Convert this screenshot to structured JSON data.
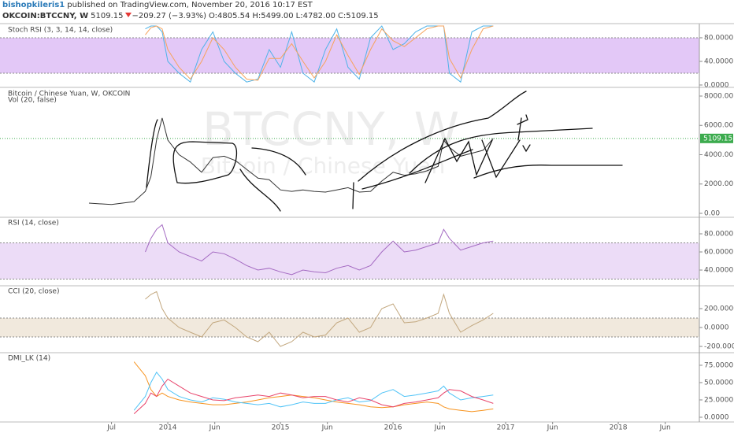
{
  "header": {
    "user": "bishopkileris1",
    "published": "published on TradingView.com, November 20, 2016 10:17 EST",
    "symbol": "OKCOIN:BTCCNY, W",
    "price": "5109.15",
    "change": "−209.27 (−3.93%)",
    "open": "O:4805.54",
    "high": "H:5499.00",
    "low": "L:4782.00",
    "close": "C:5109.15"
  },
  "chart_data": [
    {
      "type": "line",
      "title": "Stoch RSI (3, 3, 14, 14, close)",
      "x": [
        2013.3,
        2013.5,
        2013.7,
        2013.8,
        2013.85,
        2013.9,
        2013.95,
        2014.0,
        2014.1,
        2014.2,
        2014.3,
        2014.4,
        2014.5,
        2014.6,
        2014.7,
        2014.8,
        2014.9,
        2015.0,
        2015.1,
        2015.2,
        2015.3,
        2015.4,
        2015.5,
        2015.6,
        2015.7,
        2015.8,
        2015.9,
        2016.0,
        2016.1,
        2016.2,
        2016.3,
        2016.4,
        2016.45,
        2016.5,
        2016.6,
        2016.7,
        2016.8,
        2016.89
      ],
      "series": [
        {
          "color": "#4fb3e8",
          "values": [
            null,
            null,
            null,
            95,
            100,
            100,
            90,
            40,
            20,
            5,
            60,
            90,
            40,
            20,
            5,
            10,
            60,
            30,
            90,
            20,
            5,
            60,
            95,
            30,
            10,
            80,
            100,
            60,
            70,
            90,
            100,
            100,
            100,
            20,
            5,
            90,
            100,
            100
          ]
        },
        {
          "color": "#f7a35c",
          "values": [
            null,
            null,
            null,
            85,
            97,
            100,
            95,
            60,
            30,
            10,
            40,
            80,
            60,
            30,
            10,
            8,
            45,
            45,
            70,
            40,
            12,
            40,
            85,
            50,
            18,
            60,
            95,
            75,
            65,
            80,
            95,
            100,
            100,
            45,
            12,
            60,
            95,
            100
          ]
        }
      ],
      "band": [
        20,
        80
      ],
      "band_color": "#e3c8f7",
      "xlim": [
        2012.51,
        2018.72
      ],
      "ylim": [
        -2.7,
        101.3
      ],
      "yticks": [
        {
          "value": 0,
          "label": "0.0000"
        },
        {
          "value": 40,
          "label": "40.0000"
        },
        {
          "value": 80,
          "label": "80.0000"
        }
      ]
    },
    {
      "type": "price",
      "title": "Bitcoin / Chinese Yuan, W, OKCOIN",
      "volume_label": "Vol (20, false)",
      "watermark": "BTCCNY, W",
      "watermark_sub": "Bitcoin / Chinese Yuan",
      "x": [
        2013.3,
        2013.5,
        2013.7,
        2013.8,
        2013.85,
        2013.9,
        2013.95,
        2014.0,
        2014.1,
        2014.2,
        2014.3,
        2014.4,
        2014.5,
        2014.6,
        2014.7,
        2014.8,
        2014.9,
        2015.0,
        2015.1,
        2015.2,
        2015.3,
        2015.4,
        2015.5,
        2015.6,
        2015.7,
        2015.8,
        2015.9,
        2016.0,
        2016.1,
        2016.2,
        2016.3,
        2016.4,
        2016.45,
        2016.5,
        2016.6,
        2016.7,
        2016.8,
        2016.89
      ],
      "series": [
        {
          "color": "#333333",
          "values": [
            700,
            600,
            800,
            1500,
            2500,
            5000,
            6500,
            5000,
            4000,
            3500,
            2800,
            3800,
            3900,
            3600,
            3000,
            2400,
            2300,
            1600,
            1500,
            1600,
            1500,
            1450,
            1600,
            1750,
            1450,
            1500,
            2200,
            2800,
            2600,
            2700,
            2900,
            3200,
            5000,
            4500,
            3900,
            4100,
            4300,
            5109.15
          ]
        }
      ],
      "last_price": 5109.15,
      "last_price_color": "#3cab4e",
      "xlim": [
        2012.51,
        2018.72
      ],
      "ylim": [
        -215,
        8483
      ],
      "yticks": [
        {
          "value": 0,
          "label": "0.00"
        },
        {
          "value": 2000,
          "label": "2000.00"
        },
        {
          "value": 4000,
          "label": "4000.00"
        },
        {
          "value": 6000,
          "label": "6000.00"
        },
        {
          "value": 8000,
          "label": "8000.00"
        }
      ]
    },
    {
      "type": "line",
      "title": "RSI (14, close)",
      "x": [
        2013.3,
        2013.5,
        2013.7,
        2013.8,
        2013.85,
        2013.9,
        2013.95,
        2014.0,
        2014.1,
        2014.2,
        2014.3,
        2014.4,
        2014.5,
        2014.6,
        2014.7,
        2014.8,
        2014.9,
        2015.0,
        2015.1,
        2015.2,
        2015.3,
        2015.4,
        2015.5,
        2015.6,
        2015.7,
        2015.8,
        2015.9,
        2016.0,
        2016.1,
        2016.2,
        2016.3,
        2016.4,
        2016.45,
        2016.5,
        2016.6,
        2016.7,
        2016.8,
        2016.89
      ],
      "series": [
        {
          "color": "#a46ac2",
          "values": [
            null,
            null,
            null,
            60,
            75,
            85,
            90,
            70,
            60,
            55,
            50,
            60,
            58,
            52,
            45,
            40,
            42,
            38,
            35,
            40,
            38,
            37,
            42,
            45,
            40,
            45,
            60,
            72,
            60,
            62,
            66,
            70,
            85,
            75,
            62,
            66,
            70,
            72
          ]
        }
      ],
      "band": [
        30,
        70
      ],
      "band_color": "#ecdcf7",
      "xlim": [
        2012.51,
        2018.72
      ],
      "ylim": [
        23.5,
        97.4
      ],
      "yticks": [
        {
          "value": 40,
          "label": "40.0000"
        },
        {
          "value": 60,
          "label": "60.0000"
        },
        {
          "value": 80,
          "label": "80.0000"
        }
      ]
    },
    {
      "type": "line",
      "title": "CCI (20, close)",
      "x": [
        2013.3,
        2013.5,
        2013.7,
        2013.8,
        2013.85,
        2013.9,
        2013.95,
        2014.0,
        2014.1,
        2014.2,
        2014.3,
        2014.4,
        2014.5,
        2014.6,
        2014.7,
        2014.8,
        2014.9,
        2015.0,
        2015.1,
        2015.2,
        2015.3,
        2015.4,
        2015.5,
        2015.6,
        2015.7,
        2015.8,
        2015.9,
        2016.0,
        2016.1,
        2016.2,
        2016.3,
        2016.4,
        2016.45,
        2016.5,
        2016.6,
        2016.7,
        2016.8,
        2016.89
      ],
      "series": [
        {
          "color": "#c2a77e",
          "values": [
            null,
            null,
            null,
            300,
            350,
            380,
            200,
            100,
            0,
            -50,
            -100,
            50,
            80,
            0,
            -100,
            -150,
            -50,
            -200,
            -150,
            -50,
            -100,
            -80,
            50,
            100,
            -50,
            0,
            200,
            250,
            50,
            60,
            100,
            150,
            350,
            150,
            -50,
            20,
            80,
            150
          ]
        }
      ],
      "band": [
        -100,
        100
      ],
      "band_color": "#f1e9dd",
      "xlim": [
        2012.51,
        2018.72
      ],
      "ylim": [
        -258,
        433
      ],
      "yticks": [
        {
          "value": -200,
          "label": "-200.0000"
        },
        {
          "value": 0,
          "label": "0.0000"
        },
        {
          "value": 200,
          "label": "200.0000"
        }
      ]
    },
    {
      "type": "line",
      "title": "DMI_LK (14)",
      "x": [
        2013.3,
        2013.5,
        2013.7,
        2013.8,
        2013.85,
        2013.9,
        2013.95,
        2014.0,
        2014.1,
        2014.2,
        2014.3,
        2014.4,
        2014.5,
        2014.6,
        2014.7,
        2014.8,
        2014.9,
        2015.0,
        2015.1,
        2015.2,
        2015.3,
        2015.4,
        2015.5,
        2015.6,
        2015.7,
        2015.8,
        2015.9,
        2016.0,
        2016.1,
        2016.2,
        2016.3,
        2016.4,
        2016.45,
        2016.5,
        2016.6,
        2016.7,
        2016.8,
        2016.89
      ],
      "series": [
        {
          "color": "#f7931e",
          "values": [
            null,
            null,
            80,
            60,
            40,
            30,
            35,
            30,
            25,
            22,
            20,
            18,
            18,
            20,
            22,
            25,
            28,
            30,
            32,
            30,
            28,
            25,
            22,
            20,
            18,
            15,
            14,
            15,
            18,
            20,
            22,
            20,
            15,
            12,
            10,
            8,
            10,
            12
          ]
        },
        {
          "color": "#4fc3f7",
          "values": [
            null,
            null,
            10,
            30,
            50,
            65,
            55,
            40,
            30,
            25,
            22,
            28,
            26,
            22,
            20,
            18,
            20,
            15,
            18,
            22,
            20,
            20,
            25,
            28,
            22,
            24,
            35,
            40,
            30,
            32,
            35,
            38,
            45,
            35,
            25,
            28,
            30,
            32
          ]
        },
        {
          "color": "#e8446b",
          "values": [
            null,
            null,
            5,
            20,
            35,
            30,
            45,
            55,
            45,
            35,
            30,
            25,
            24,
            28,
            30,
            32,
            30,
            35,
            32,
            28,
            30,
            30,
            25,
            22,
            28,
            25,
            18,
            15,
            20,
            22,
            25,
            28,
            35,
            40,
            38,
            30,
            25,
            20
          ]
        }
      ],
      "xlim": [
        2012.51,
        2018.72
      ],
      "ylim": [
        -5.7,
        92
      ],
      "yticks": [
        {
          "value": 0,
          "label": "0.0000"
        },
        {
          "value": 25,
          "label": "25.0000"
        },
        {
          "value": 50,
          "label": "50.0000"
        },
        {
          "value": 75,
          "label": "75.0000"
        }
      ],
      "xticks": [
        {
          "value": 2013.5,
          "label": "Jul"
        },
        2014,
        {
          "value": 2014.417,
          "label": "Jun"
        },
        2015,
        {
          "value": 2015.417,
          "label": "Jun"
        },
        2016,
        {
          "value": 2016.417,
          "label": "Jun"
        },
        2017,
        {
          "value": 2017.417,
          "label": "Jun"
        },
        2018,
        {
          "value": 2018.417,
          "label": "Jun"
        }
      ]
    }
  ]
}
